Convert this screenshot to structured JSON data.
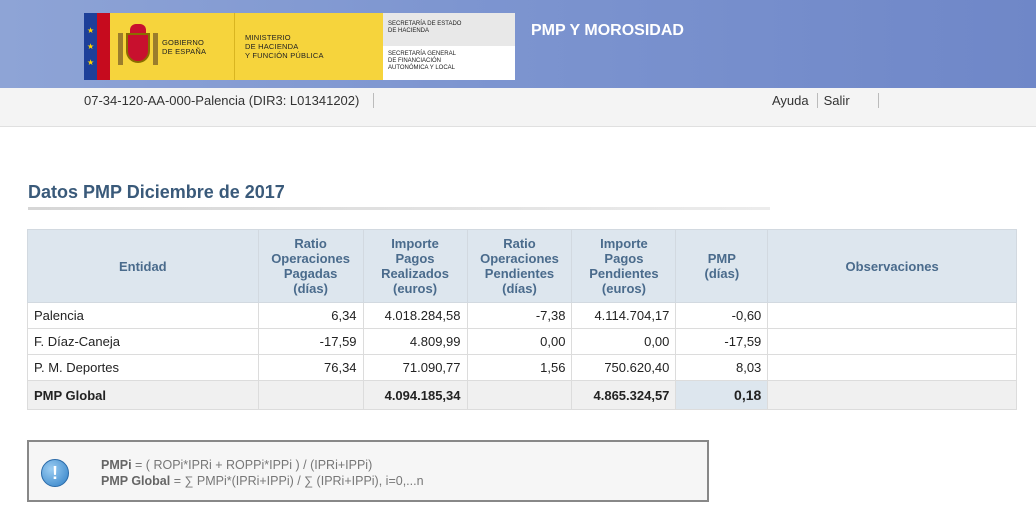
{
  "header": {
    "gob_line1": "GOBIERNO",
    "gob_line2": "DE ESPAÑA",
    "min_line1": "MINISTERIO",
    "min_line2": "DE HACIENDA",
    "min_line3": "Y FUNCIÓN PÚBLICA",
    "sec1_line1": "SECRETARÍA DE ESTADO",
    "sec1_line2": "DE HACIENDA",
    "sec2_line1": "SECRETARÍA GENERAL",
    "sec2_line2": "DE FINANCIACIÓN",
    "sec2_line3": "AUTONÓMICA Y LOCAL",
    "app_title": "PMP Y MOROSIDAD"
  },
  "subbar": {
    "entity": "07-34-120-AA-000-Palencia (DIR3: L01341202)",
    "help": "Ayuda",
    "exit": "Salir"
  },
  "page_title": "Datos PMP Diciembre de 2017",
  "table": {
    "headers": {
      "entidad": "Entidad",
      "rop": [
        "Ratio",
        "Operaciones",
        "Pagadas",
        "(días)"
      ],
      "ipr": [
        "Importe",
        "Pagos",
        "Realizados",
        "(euros)"
      ],
      "ropp": [
        "Ratio",
        "Operaciones",
        "Pendientes",
        "(días)"
      ],
      "ipp": [
        "Importe",
        "Pagos",
        "Pendientes",
        "(euros)"
      ],
      "pmp": [
        "PMP",
        "(días)"
      ],
      "obs": "Observaciones"
    },
    "rows": [
      {
        "entidad": "Palencia",
        "rop": "6,34",
        "ipr": "4.018.284,58",
        "ropp": "-7,38",
        "ipp": "4.114.704,17",
        "pmp": "-0,60",
        "obs": ""
      },
      {
        "entidad": "F. Díaz-Caneja",
        "rop": "-17,59",
        "ipr": "4.809,99",
        "ropp": "0,00",
        "ipp": "0,00",
        "pmp": "-17,59",
        "obs": ""
      },
      {
        "entidad": "P. M. Deportes",
        "rop": "76,34",
        "ipr": "71.090,77",
        "ropp": "1,56",
        "ipp": "750.620,40",
        "pmp": "8,03",
        "obs": ""
      }
    ],
    "total": {
      "entidad": "PMP Global",
      "ipr": "4.094.185,34",
      "ipp": "4.865.324,57",
      "pmp": "0,18"
    }
  },
  "formula": {
    "icon": "!",
    "pmpi_label": "PMPi",
    "pmpi_expr": " = ( ROPi*IPRi + ROPPi*IPPi ) / (IPRi+IPPi)",
    "global_label": "PMP Global",
    "global_expr": " = ∑ PMPi*(IPRi+IPPi) / ∑ (IPRi+IPPi), i=0,...n"
  }
}
